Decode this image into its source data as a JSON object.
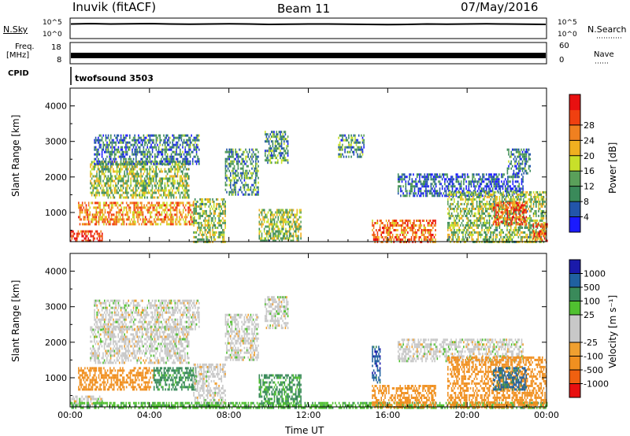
{
  "header": {
    "station": "Inuvik (fitACF)",
    "beam": "Beam 11",
    "date": "07/May/2016"
  },
  "labels": {
    "nsky": "N.Sky",
    "nsearch": "N.Search",
    "freq_line1": "Freq.",
    "freq_line2": "[MHz]",
    "nave": "Nave",
    "cpid": "CPID",
    "cpid_value": "twofsound 3503",
    "sky_ticks": [
      "10^5",
      "10^0"
    ],
    "right_sky_ticks": [
      "10^5",
      "10^0"
    ],
    "freq_ticks": [
      "18",
      "8"
    ],
    "nave_ticks": [
      "60",
      "0"
    ],
    "nsearch_style": "dotted",
    "nave_style": "dotted"
  },
  "colors": {
    "power": [
      "#1a1aff",
      "#2255aa",
      "#3a8a5a",
      "#5aa05a",
      "#c8e02a",
      "#f0b020",
      "#f08020",
      "#f04010",
      "#e81010"
    ],
    "velocity": [
      "#e81010",
      "#f06010",
      "#f09020",
      "#f0a030",
      "#c8c8c8",
      "#c8c8c8",
      "#50c030",
      "#3a8a5a",
      "#2060a0",
      "#1a1aaa"
    ]
  },
  "chart_data": [
    {
      "type": "line",
      "name": "sky-noise",
      "series": [
        {
          "name": "N.Sky",
          "values": [
            3.5,
            3.6,
            3.5,
            3.55,
            3.6,
            3.5,
            3.45,
            3.5,
            3.55,
            3.5,
            3.4,
            3.45,
            3.5,
            3.5,
            3.45,
            3.4,
            3.35,
            3.4,
            3.5,
            3.45,
            3.5,
            3.55,
            3.5,
            3.45,
            3.4
          ]
        }
      ],
      "ylim": [
        0,
        5
      ],
      "yscale": "log",
      "ytick_labels": [
        "10^0",
        "10^5"
      ]
    },
    {
      "type": "line",
      "name": "frequency",
      "series": [
        {
          "name": "Freq.",
          "values": [
            10.5,
            11,
            10.5,
            11,
            10.5,
            11,
            10.5,
            11,
            10.5,
            11,
            10.5,
            11,
            10.5,
            11,
            10.5,
            11,
            10.5,
            11,
            10.5,
            11,
            10.5,
            11,
            10.5,
            11,
            10.5
          ]
        }
      ],
      "ylim": [
        8,
        18
      ]
    },
    {
      "type": "heatmap",
      "name": "power",
      "xlabel": "",
      "ylabel": "Slant Range [km]",
      "xlim": [
        0,
        24
      ],
      "ylim": [
        180,
        4500
      ],
      "x_tick_labels": [
        "00:00",
        "04:00",
        "08:00",
        "12:00",
        "16:00",
        "20:00",
        "00:00"
      ],
      "y_ticks": [
        1000,
        2000,
        3000,
        4000
      ],
      "colorbar": {
        "label": "Power [dB]",
        "range": [
          0,
          32
        ],
        "ticks": [
          "4",
          "8",
          "12",
          "16",
          "20",
          "24",
          "28"
        ]
      },
      "regions": [
        {
          "t": [
            0,
            1.6
          ],
          "r": [
            180,
            500
          ],
          "value": 28
        },
        {
          "t": [
            0.4,
            6.3
          ],
          "r": [
            650,
            1300
          ],
          "value": 22
        },
        {
          "t": [
            1.0,
            6.0
          ],
          "r": [
            1450,
            2450
          ],
          "value": 14
        },
        {
          "t": [
            1.2,
            6.5
          ],
          "r": [
            2400,
            3200
          ],
          "value": 8
        },
        {
          "t": [
            6.2,
            7.8
          ],
          "r": [
            180,
            1400
          ],
          "value": 14
        },
        {
          "t": [
            7.8,
            9.5
          ],
          "r": [
            1500,
            2800
          ],
          "value": 10
        },
        {
          "t": [
            9.5,
            11.6
          ],
          "r": [
            180,
            1100
          ],
          "value": 14
        },
        {
          "t": [
            9.8,
            11.0
          ],
          "r": [
            2400,
            3300
          ],
          "value": 10
        },
        {
          "t": [
            13.5,
            14.8
          ],
          "r": [
            2600,
            3200
          ],
          "value": 10
        },
        {
          "t": [
            15.2,
            18.4
          ],
          "r": [
            180,
            800
          ],
          "value": 24
        },
        {
          "t": [
            16.5,
            22.8
          ],
          "r": [
            1450,
            2100
          ],
          "value": 6
        },
        {
          "t": [
            19.0,
            24.0
          ],
          "r": [
            200,
            1600
          ],
          "value": 14
        },
        {
          "t": [
            21.3,
            23.0
          ],
          "r": [
            700,
            1300
          ],
          "value": 26
        },
        {
          "t": [
            23.3,
            24.0
          ],
          "r": [
            180,
            700
          ],
          "value": 26
        },
        {
          "t": [
            22.0,
            23.2
          ],
          "r": [
            2100,
            2800
          ],
          "value": 8
        }
      ]
    },
    {
      "type": "heatmap",
      "name": "velocity",
      "xlabel": "Time UT",
      "ylabel": "Slant Range [km]",
      "xlim": [
        0,
        24
      ],
      "ylim": [
        180,
        4500
      ],
      "x_tick_labels": [
        "00:00",
        "04:00",
        "08:00",
        "12:00",
        "16:00",
        "20:00",
        "00:00"
      ],
      "y_ticks": [
        1000,
        2000,
        3000,
        4000
      ],
      "colorbar": {
        "label": "Velocity [m s⁻¹]",
        "ticks": [
          "-1000",
          "-500",
          "-100",
          "-25",
          "25",
          "100",
          "500",
          "1000"
        ]
      },
      "regions": [
        {
          "t": [
            0,
            1.6
          ],
          "r": [
            180,
            500
          ],
          "value": 0
        },
        {
          "t": [
            0.4,
            4.2
          ],
          "r": [
            650,
            1300
          ],
          "value": -300
        },
        {
          "t": [
            4.2,
            6.3
          ],
          "r": [
            650,
            1300
          ],
          "value": 150
        },
        {
          "t": [
            1.0,
            6.0
          ],
          "r": [
            1450,
            2450
          ],
          "value": 0
        },
        {
          "t": [
            1.2,
            6.5
          ],
          "r": [
            2400,
            3200
          ],
          "value": 0
        },
        {
          "t": [
            6.2,
            7.8
          ],
          "r": [
            180,
            1400
          ],
          "value": 0
        },
        {
          "t": [
            7.8,
            9.5
          ],
          "r": [
            1500,
            2800
          ],
          "value": 0
        },
        {
          "t": [
            9.5,
            11.6
          ],
          "r": [
            180,
            1100
          ],
          "value": 120
        },
        {
          "t": [
            9.8,
            11.0
          ],
          "r": [
            2400,
            3300
          ],
          "value": 0
        },
        {
          "t": [
            0,
            24.0
          ],
          "r": [
            180,
            320
          ],
          "value": 80
        },
        {
          "t": [
            15.2,
            18.4
          ],
          "r": [
            180,
            800
          ],
          "value": -150
        },
        {
          "t": [
            16.5,
            22.8
          ],
          "r": [
            1450,
            2100
          ],
          "value": 0
        },
        {
          "t": [
            19.0,
            24.0
          ],
          "r": [
            200,
            1600
          ],
          "value": -200
        },
        {
          "t": [
            21.3,
            23.0
          ],
          "r": [
            700,
            1300
          ],
          "value": 600
        },
        {
          "t": [
            15.2,
            15.6
          ],
          "r": [
            900,
            1900
          ],
          "value": 800
        }
      ]
    }
  ]
}
